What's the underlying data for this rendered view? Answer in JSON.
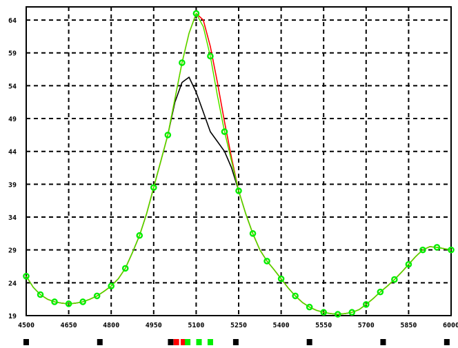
{
  "chart_data": {
    "type": "line",
    "title": "",
    "xlabel": "",
    "ylabel": "",
    "xlim": [
      4500,
      6000
    ],
    "ylim": [
      19,
      66
    ],
    "x_ticks": [
      4500,
      4650,
      4800,
      4950,
      5100,
      5250,
      5400,
      5550,
      5700,
      5850,
      6000
    ],
    "x_tick_labels": [
      "4500",
      "4650",
      "4800",
      "4950",
      "5100",
      "5250",
      "5400",
      "5550",
      "5700",
      "5850",
      "6000"
    ],
    "y_ticks": [
      19,
      24,
      29,
      34,
      39,
      44,
      49,
      54,
      59,
      64
    ],
    "y_tick_labels": [
      "19",
      "24",
      "29",
      "34",
      "39",
      "44",
      "49",
      "54",
      "59",
      "64"
    ],
    "grid": true,
    "series": [
      {
        "name": "",
        "color": "#000000",
        "marker": "none",
        "x": [
          4500,
          4525,
          4550,
          4575,
          4600,
          4625,
          4650,
          4675,
          4700,
          4725,
          4750,
          4775,
          4800,
          4825,
          4850,
          4875,
          4900,
          4925,
          4950,
          4975,
          5000,
          5025,
          5050,
          5075,
          5100,
          5125,
          5150,
          5175,
          5200,
          5225,
          5250,
          5275,
          5300,
          5325,
          5350,
          5375,
          5400,
          5425,
          5450,
          5475,
          5500,
          5525,
          5550,
          5575,
          5600,
          5625,
          5650,
          5675,
          5700,
          5725,
          5750,
          5775,
          5800,
          5825,
          5850,
          5875,
          5900,
          5925,
          5950,
          5975,
          6000
        ],
        "values": [
          25.0,
          23.3,
          22.2,
          21.5,
          21.1,
          20.9,
          20.8,
          20.9,
          21.1,
          21.5,
          22.0,
          22.7,
          23.5,
          24.6,
          26.2,
          28.6,
          31.2,
          34.5,
          38.5,
          42.5,
          46.5,
          51.5,
          54.5,
          55.3,
          53.0,
          50.0,
          47.0,
          45.5,
          44.0,
          41.5,
          38.0,
          34.5,
          31.5,
          29.0,
          27.3,
          26.0,
          24.6,
          23.2,
          22.0,
          21.0,
          20.3,
          19.8,
          19.5,
          19.3,
          19.2,
          19.3,
          19.5,
          19.9,
          20.7,
          21.6,
          22.6,
          23.5,
          24.5,
          25.6,
          26.8,
          28.0,
          29.0,
          29.5,
          29.4,
          29.2,
          29.0
        ]
      },
      {
        "name": "",
        "color": "#ff0000",
        "marker": "none",
        "x": [
          4500,
          4525,
          4550,
          4575,
          4600,
          4625,
          4650,
          4675,
          4700,
          4725,
          4750,
          4775,
          4800,
          4825,
          4850,
          4875,
          4900,
          4925,
          4950,
          4975,
          5000,
          5025,
          5050,
          5075,
          5100,
          5125,
          5150,
          5175,
          5200,
          5225,
          5250,
          5275,
          5300,
          5325,
          5350,
          5375,
          5400,
          5425,
          5450,
          5475,
          5500,
          5525,
          5550,
          5575,
          5600,
          5625,
          5650,
          5675,
          5700,
          5725,
          5750,
          5775,
          5800,
          5825,
          5850,
          5875,
          5900,
          5925,
          5950,
          5975,
          6000
        ],
        "values": [
          25.0,
          23.3,
          22.2,
          21.5,
          21.1,
          20.9,
          20.8,
          20.9,
          21.1,
          21.5,
          22.0,
          22.7,
          23.5,
          24.6,
          26.2,
          28.6,
          31.2,
          34.5,
          38.5,
          42.5,
          46.5,
          52.0,
          57.5,
          62.0,
          65.0,
          64.0,
          60.0,
          54.5,
          48.5,
          43.0,
          38.0,
          34.5,
          31.5,
          29.0,
          27.3,
          26.0,
          24.6,
          23.2,
          22.0,
          21.0,
          20.3,
          19.8,
          19.5,
          19.3,
          19.2,
          19.3,
          19.5,
          19.9,
          20.7,
          21.6,
          22.6,
          23.5,
          24.5,
          25.6,
          26.8,
          28.0,
          29.0,
          29.5,
          29.4,
          29.2,
          29.0
        ]
      },
      {
        "name": "",
        "color": "#ffd700",
        "marker": "none",
        "x": [
          4500,
          4525,
          4550,
          4575,
          4600,
          4625,
          4650,
          4675,
          4700,
          4725,
          4750,
          4775,
          4800,
          4825,
          4850,
          4875,
          4900,
          4925,
          4950,
          4975,
          5000,
          5025,
          5050,
          5075,
          5100,
          5125,
          5150,
          5175,
          5200,
          5225,
          5250,
          5275,
          5300,
          5325,
          5350,
          5375,
          5400,
          5425,
          5450,
          5475,
          5500,
          5525,
          5550,
          5575,
          5600,
          5625,
          5650,
          5675,
          5700,
          5725,
          5750,
          5775,
          5800,
          5825,
          5850,
          5875,
          5900,
          5925,
          5950,
          5975,
          6000
        ],
        "values": [
          25.0,
          23.3,
          22.2,
          21.5,
          21.1,
          20.9,
          20.8,
          20.9,
          21.1,
          21.5,
          22.0,
          22.7,
          23.5,
          24.6,
          26.2,
          28.6,
          31.2,
          34.5,
          38.5,
          42.5,
          46.5,
          52.0,
          57.5,
          62.0,
          65.0,
          63.0,
          58.5,
          52.5,
          47.0,
          42.5,
          38.0,
          34.5,
          31.5,
          29.0,
          27.3,
          26.0,
          24.6,
          23.2,
          22.0,
          21.0,
          20.3,
          19.8,
          19.5,
          19.3,
          19.2,
          19.3,
          19.5,
          19.9,
          20.7,
          21.6,
          22.6,
          23.5,
          24.5,
          25.6,
          26.8,
          28.0,
          29.0,
          29.5,
          29.4,
          29.2,
          29.0
        ]
      },
      {
        "name": "",
        "color": "#00ee00",
        "marker": "circle",
        "x": [
          4500,
          4525,
          4550,
          4575,
          4600,
          4625,
          4650,
          4675,
          4700,
          4725,
          4750,
          4775,
          4800,
          4825,
          4850,
          4875,
          4900,
          4925,
          4950,
          4975,
          5000,
          5025,
          5050,
          5075,
          5100,
          5125,
          5150,
          5175,
          5200,
          5225,
          5250,
          5275,
          5300,
          5325,
          5350,
          5375,
          5400,
          5425,
          5450,
          5475,
          5500,
          5525,
          5550,
          5575,
          5600,
          5625,
          5650,
          5675,
          5700,
          5725,
          5750,
          5775,
          5800,
          5825,
          5850,
          5875,
          5900,
          5925,
          5950,
          5975,
          6000
        ],
        "values": [
          25.0,
          23.3,
          22.2,
          21.5,
          21.1,
          20.9,
          20.8,
          20.9,
          21.1,
          21.5,
          22.0,
          22.7,
          23.5,
          24.6,
          26.2,
          28.6,
          31.2,
          34.5,
          38.5,
          42.5,
          46.5,
          52.0,
          57.5,
          62.0,
          65.0,
          63.0,
          58.5,
          52.5,
          47.0,
          42.5,
          38.0,
          34.5,
          31.5,
          29.0,
          27.3,
          26.0,
          24.6,
          23.2,
          22.0,
          21.0,
          20.3,
          19.8,
          19.5,
          19.3,
          19.2,
          19.3,
          19.5,
          19.9,
          20.7,
          21.6,
          22.6,
          23.5,
          24.5,
          25.6,
          26.8,
          28.0,
          29.0,
          29.5,
          29.4,
          29.2,
          29.0
        ],
        "marker_x": [
          4500,
          4550,
          4600,
          4650,
          4700,
          4750,
          4800,
          4850,
          4900,
          4950,
          5000,
          5050,
          5100,
          5150,
          5200,
          5250,
          5300,
          5350,
          5400,
          5450,
          5500,
          5550,
          5600,
          5650,
          5700,
          5750,
          5800,
          5850,
          5900,
          5950,
          6000
        ],
        "marker_values": [
          25.0,
          22.2,
          21.1,
          20.8,
          21.1,
          22.0,
          23.5,
          26.2,
          31.2,
          38.5,
          46.5,
          57.5,
          65.0,
          58.5,
          47.0,
          38.0,
          31.5,
          27.3,
          24.6,
          22.0,
          20.3,
          19.5,
          19.2,
          19.5,
          20.7,
          22.6,
          24.5,
          26.8,
          29.0,
          29.4,
          29.0
        ]
      }
    ],
    "bottom_strip": [
      {
        "x": 4500,
        "color": "#000000"
      },
      {
        "x": 4760,
        "color": "#000000"
      },
      {
        "x": 5010,
        "color": "#000000"
      },
      {
        "x": 5030,
        "color": "#ff0000"
      },
      {
        "x": 5055,
        "color": "#ff0000"
      },
      {
        "x": 5070,
        "color": "#00ee00"
      },
      {
        "x": 5110,
        "color": "#00ee00"
      },
      {
        "x": 5150,
        "color": "#00ee00"
      },
      {
        "x": 5240,
        "color": "#000000"
      },
      {
        "x": 5500,
        "color": "#000000"
      },
      {
        "x": 5760,
        "color": "#000000"
      },
      {
        "x": 5985,
        "color": "#000000"
      }
    ]
  }
}
